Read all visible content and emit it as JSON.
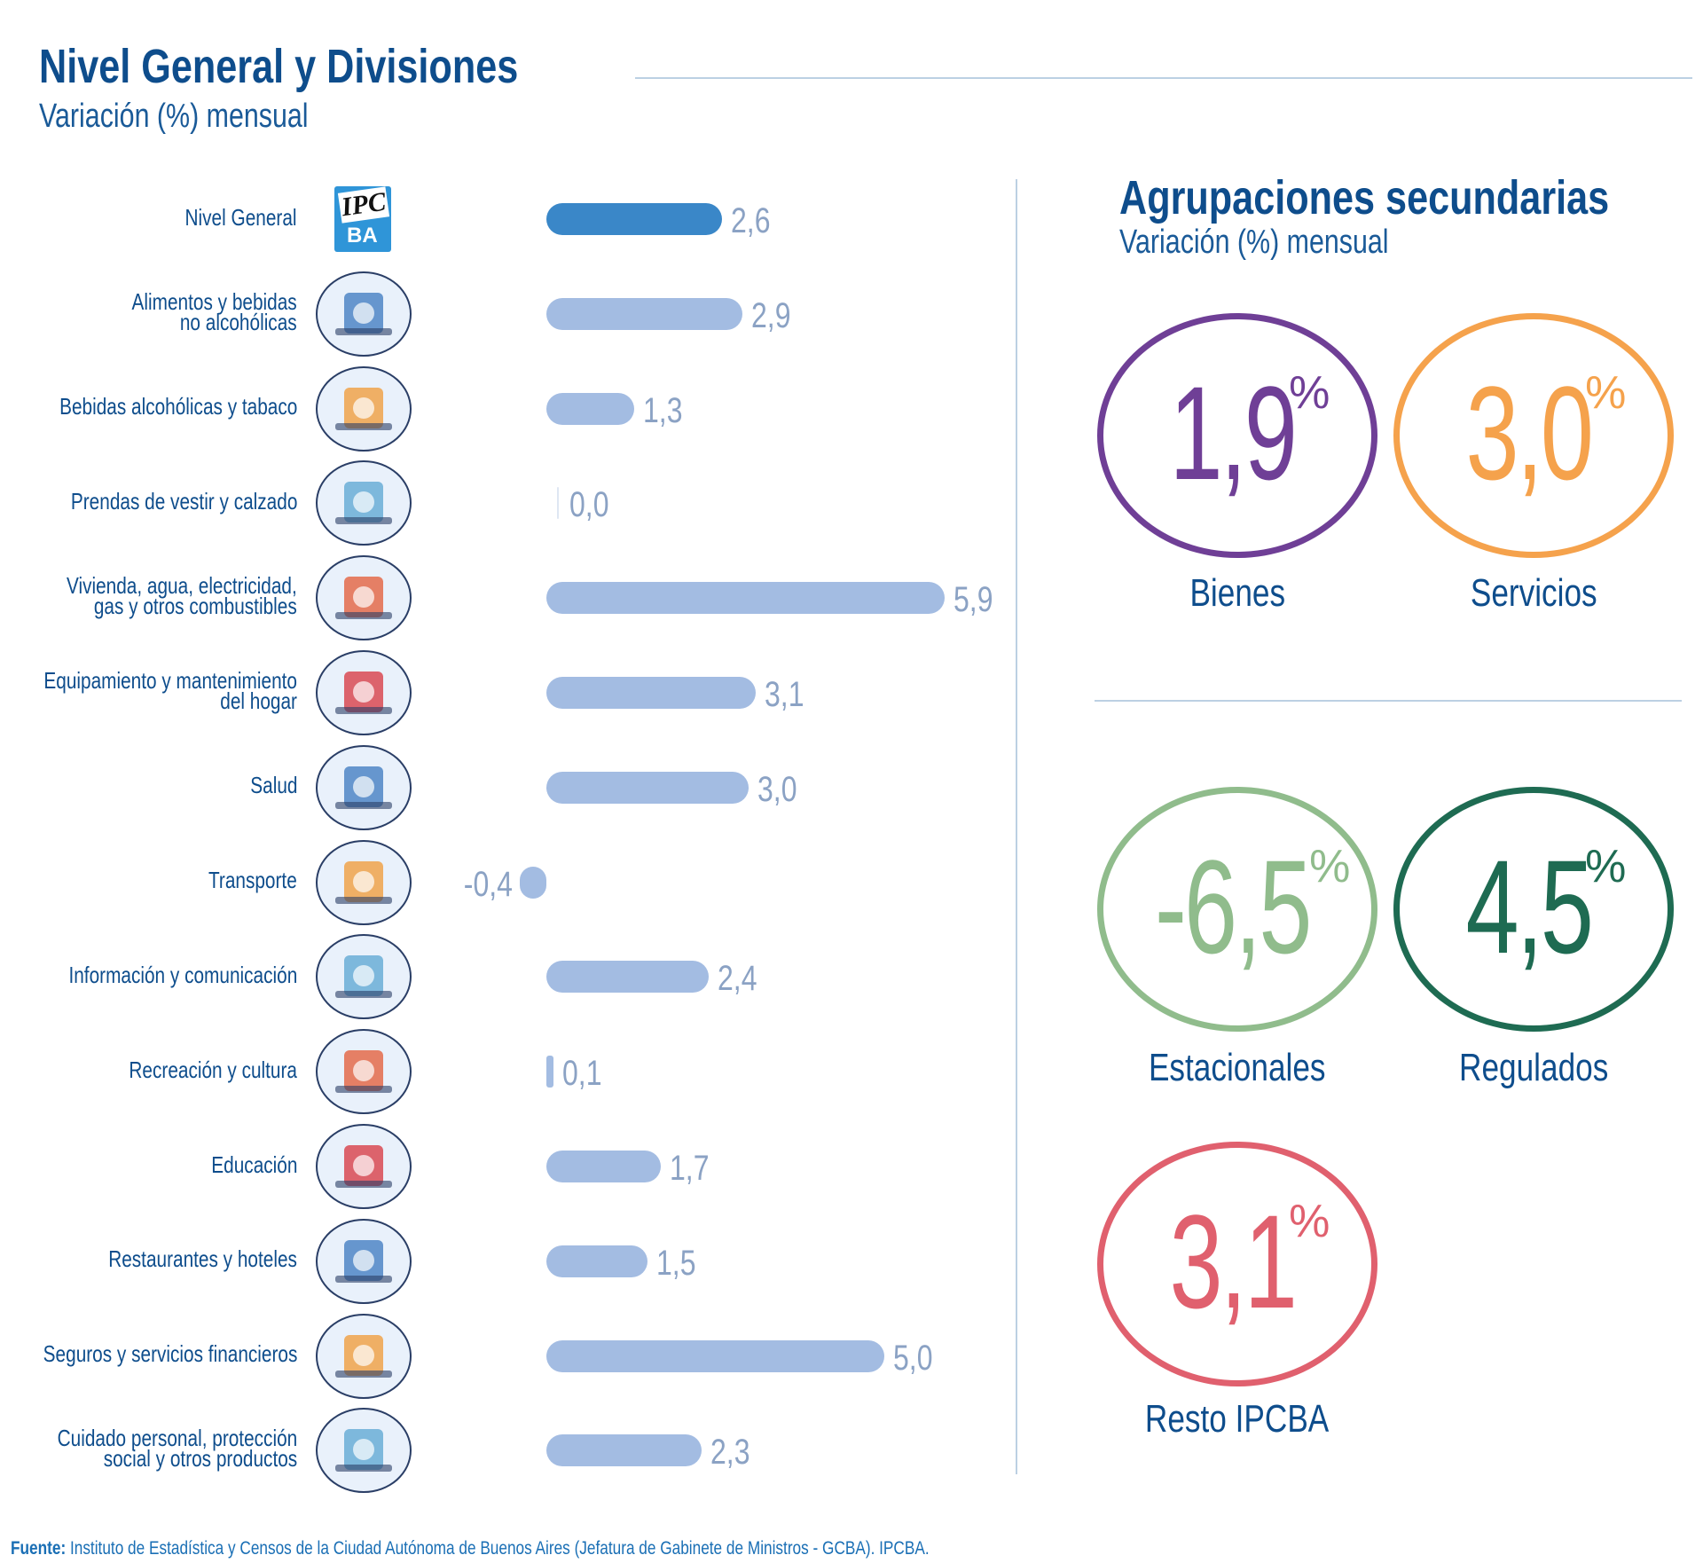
{
  "left_panel": {
    "title": "Nivel General y Divisiones",
    "subtitle": "Variación (%) mensual"
  },
  "right_panel": {
    "title": "Agrupaciones secundarias",
    "subtitle": "Variación (%) mensual",
    "groups": [
      {
        "label": "Bienes",
        "value": "1,9",
        "unit": "%",
        "color": "#6f3f96"
      },
      {
        "label": "Servicios",
        "value": "3,0",
        "unit": "%",
        "color": "#f5a24c"
      },
      {
        "label": "Estacionales",
        "value": "-6,5",
        "unit": "%",
        "color": "#90bc8c"
      },
      {
        "label": "Regulados",
        "value": "4,5",
        "unit": "%",
        "color": "#1e6b52"
      },
      {
        "label": "Resto IPCBA",
        "value": "3,1",
        "unit": "%",
        "color": "#e0606e"
      }
    ]
  },
  "chart_data": {
    "type": "bar",
    "orientation": "horizontal",
    "title": "Nivel General y Divisiones",
    "subtitle": "Variación (%) mensual",
    "categories": [
      "Nivel General",
      "Alimentos y bebidas\nno alcohólicas",
      "Bebidas alcohólicas y tabaco",
      "Prendas de vestir y calzado",
      "Vivienda, agua, electricidad,\ngas y otros combustibles",
      "Equipamiento y mantenimiento\ndel hogar",
      "Salud",
      "Transporte",
      "Información y comunicación",
      "Recreación y cultura",
      "Educación",
      "Restaurantes y hoteles",
      "Seguros y servicios financieros",
      "Cuidado personal, protección\nsocial y otros productos"
    ],
    "values": [
      2.6,
      2.9,
      1.3,
      0.0,
      5.9,
      3.1,
      3.0,
      -0.4,
      2.4,
      0.1,
      1.7,
      1.5,
      5.0,
      2.3
    ],
    "value_labels": [
      "2,6",
      "2,9",
      "1,3",
      "0,0",
      "5,9",
      "3,1",
      "3,0",
      "-0,4",
      "2,4",
      "0,1",
      "1,7",
      "1,5",
      "5,0",
      "2,3"
    ],
    "icons": [
      "ipcba-logo",
      "food-drinks-icon",
      "wine-cigarette-icon",
      "clothing-shoe-icon",
      "house-utilities-icon",
      "washing-machine-icon",
      "doctor-icon",
      "plane-car-icon",
      "laptop-tablet-icon",
      "theater-popcorn-icon",
      "school-graduation-icon",
      "serving-bell-icon",
      "bank-icon",
      "personal-care-icon"
    ],
    "highlight_color": "#3a87c8",
    "bar_color": "#a3bce2",
    "grid": false
  },
  "logo": {
    "line1": "IPC",
    "line2": "BA"
  },
  "footer": {
    "label": "Fuente:",
    "text": " Instituto de Estadística y Censos de la Ciudad Autónoma de Buenos Aires (Jefatura de Gabinete de Ministros - GCBA). IPCBA."
  }
}
